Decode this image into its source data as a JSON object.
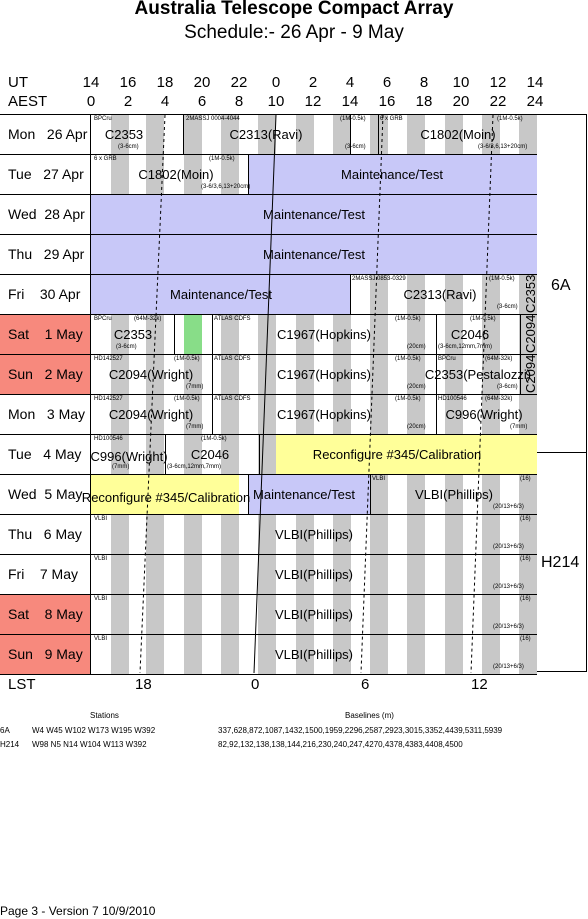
{
  "header": {
    "title": "Australia Telescope Compact Array",
    "subtitle": "Schedule:- 26 Apr - 9  May"
  },
  "axes": {
    "ut_label": "UT",
    "aest_label": "AEST",
    "ut_ticks": [
      "14",
      "16",
      "18",
      "20",
      "22",
      "0",
      "2",
      "4",
      "6",
      "8",
      "10",
      "12",
      "14"
    ],
    "aest_ticks": [
      "0",
      "2",
      "4",
      "6",
      "8",
      "10",
      "12",
      "14",
      "16",
      "18",
      "20",
      "22",
      "24"
    ],
    "lst_label": "LST",
    "lst_ticks": [
      "18",
      "0",
      "6",
      "12"
    ]
  },
  "days": [
    {
      "label": "Mon   26 Apr",
      "weekend": false
    },
    {
      "label": "Tue   27 Apr",
      "weekend": false
    },
    {
      "label": "Wed  28 Apr",
      "weekend": false
    },
    {
      "label": "Thu   29 Apr",
      "weekend": false
    },
    {
      "label": "Fri    30 Apr",
      "weekend": false
    },
    {
      "label": "Sat    1 May",
      "weekend": true
    },
    {
      "label": "Sun   2 May",
      "weekend": true
    },
    {
      "label": "Mon   3 May",
      "weekend": false
    },
    {
      "label": "Tue   4 May",
      "weekend": false
    },
    {
      "label": "Wed  5 May",
      "weekend": false
    },
    {
      "label": "Thu   6 May",
      "weekend": false
    },
    {
      "label": "Fri    7 May",
      "weekend": false
    },
    {
      "label": "Sat    8 May",
      "weekend": true
    },
    {
      "label": "Sun   9 May",
      "weekend": true
    }
  ],
  "projects": {
    "r0": {
      "a": "C2353",
      "b": "C2313(Ravi)",
      "c": "C1802(Moin)",
      "s1": "BPCru",
      "s2": "(3-6cm)",
      "s3": "2MASSJ 0004-4044",
      "s4": "(1M-0.5k)",
      "s5": "(3-6cm)",
      "s6": "6 x GRB",
      "s7": "(1M-0.5k)",
      "s8": "(3-6/3,6,13+20cm)"
    },
    "r1": {
      "a": "C1802(Moin)",
      "b": "Maintenance/Test",
      "s1": "6 x GRB",
      "s2": "(1M-0.5k)",
      "s3": "(3-6/3,6,13+20cm)"
    },
    "r2": {
      "a": "Maintenance/Test"
    },
    "r3": {
      "a": "Maintenance/Test"
    },
    "r4": {
      "a": "Maintenance/Test",
      "b": "C2313(Ravi)",
      "s1": "2MASSJ 0853-0329",
      "s2": "(1M-0.5k)",
      "s3": "(3-6cm)"
    },
    "r5": {
      "a": "C2353",
      "b": "C1967(Hopkins)",
      "c": "C2046",
      "s1": "BPCru",
      "s2": "(64M-32k)",
      "s3": "(3-6cm)",
      "s4": "ATLAS CDFS",
      "s5": "(1M-0.5k)",
      "s6": "(20cm)",
      "s7": "(1M-0.5k)",
      "s8": "(3-6cm,12mm,7mm)"
    },
    "r6": {
      "a": "C2094(Wright)",
      "b": "C1967(Hopkins)",
      "c": "C2353(Pestalozzi)",
      "s1": "HD142527",
      "s2": "(1M-0.5k)",
      "s3": "(7mm)",
      "s4": "ATLAS CDFS",
      "s5": "(1M-0.5k)",
      "s6": "(20cm)",
      "s7": "BPCru",
      "s8": "(64M-32k)",
      "s9": "(3-6cm)"
    },
    "r7": {
      "a": "C2094(Wright)",
      "b": "C1967(Hopkins)",
      "c": "C996(Wright)",
      "s1": "HD142527",
      "s2": "(1M-0.5k)",
      "s3": "(7mm)",
      "s4": "ATLAS CDFS",
      "s5": "(1M-0.5k)",
      "s6": "(20cm)",
      "s7": "HD100546",
      "s8": "(64M-32k)",
      "s9": "(7mm)"
    },
    "r8": {
      "a": "C996(Wright)",
      "b": "C2046",
      "c": "Reconfigure #345/Calibration",
      "s1": "HD100546",
      "s2": "(7mm)",
      "s3": "(1M-0.5k)",
      "s4": "(3-6cm,12mm,7mm)"
    },
    "r9": {
      "a": "Reconfigure #345/Calibration",
      "b": "Maintenance/Test",
      "c": "VLBI(Phillips)",
      "s1": "VLBI",
      "s2": "(16)",
      "s3": "(20/13+6/3)"
    },
    "r10": {
      "a": "VLBI(Phillips)",
      "s1": "VLBI",
      "s2": "(16)",
      "s3": "(20/13+6/3)"
    },
    "r11": {
      "a": "VLBI(Phillips)",
      "s1": "VLBI",
      "s2": "(16)",
      "s3": "(20/13+6/3)"
    },
    "r12": {
      "a": "VLBI(Phillips)",
      "s1": "VLBI",
      "s2": "(16)",
      "s3": "(20/13+6/3)"
    },
    "r13": {
      "a": "VLBI(Phillips)",
      "s1": "VLBI",
      "s2": "(16)",
      "s3": "(20/13+6/3)"
    },
    "side_c2353": "C2353",
    "side_c2094_a": "C2094",
    "side_c2094_b": "C2094"
  },
  "configs": {
    "a": "6A",
    "b": "H214"
  },
  "footer": {
    "stations_header": "Stations",
    "baselines_header": "Baselines (m)",
    "cfg1": "6A",
    "cfg1_stations": "W4 W45 W102 W173 W195 W392",
    "cfg1_baselines": "337,628,872,1087,1432,1500,1959,2296,2587,2923,3015,3352,4439,5311,5939",
    "cfg2": "H214",
    "cfg2_stations": "W98 N5 N14 W104 W113 W392",
    "cfg2_baselines": "82,92,132,138,138,144,216,230,240,247,4270,4378,4383,4408,4500",
    "page": "Page 3 - Version 7  10/9/2010"
  }
}
